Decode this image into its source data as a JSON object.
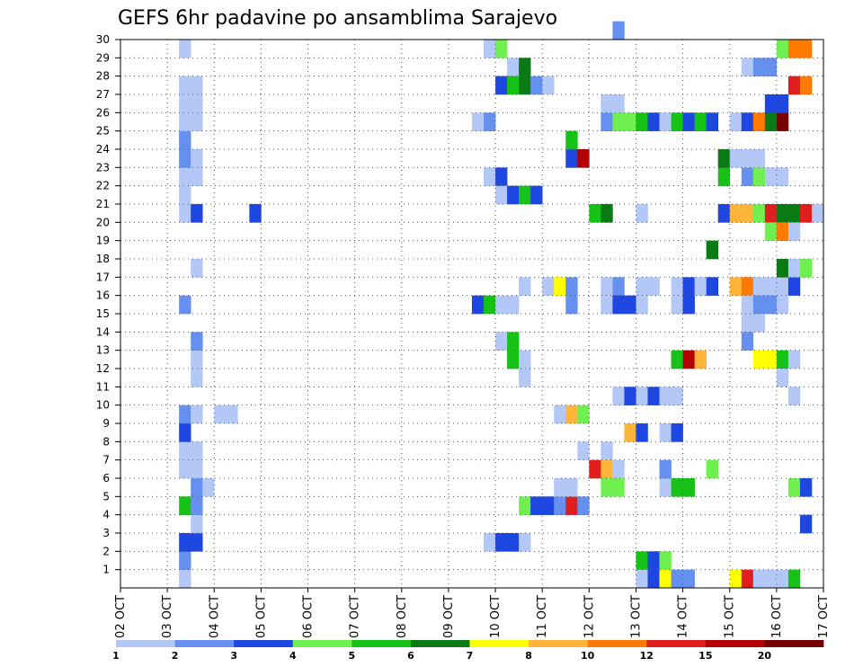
{
  "chart_data": {
    "type": "heatmap",
    "title": "GEFS 6hr padavine po ansamblima Sarajevo",
    "x_ticks": [
      "02 OCT",
      "03 OCT",
      "04 OCT",
      "05 OCT",
      "06 OCT",
      "07 OCT",
      "08 OCT",
      "09 OCT",
      "10 OCT",
      "11 OCT",
      "12 OCT",
      "13 OCT",
      "14 OCT",
      "15 OCT",
      "16 OCT",
      "17 OCT"
    ],
    "x_range_days": [
      2,
      17
    ],
    "steps_per_day": 4,
    "y_ticks": [
      "1",
      "2",
      "3",
      "4",
      "5",
      "6",
      "7",
      "8",
      "9",
      "10",
      "11",
      "12",
      "13",
      "14",
      "15",
      "16",
      "17",
      "18",
      "19",
      "20",
      "21",
      "22",
      "23",
      "24",
      "25",
      "26",
      "27",
      "28",
      "29",
      "30"
    ],
    "y_range": [
      0,
      30
    ],
    "grid": true,
    "legend": {
      "position": "bottom",
      "colors": [
        "#b4c8f8",
        "#6690f0",
        "#1e46e0",
        "#70f050",
        "#16c216",
        "#0a7a14",
        "#ffff00",
        "#ffb43a",
        "#ff7a00",
        "#e01e1e",
        "#b40000",
        "#780000"
      ],
      "labels": [
        "1",
        "2",
        "3",
        "4",
        "5",
        "6",
        "7",
        "8",
        "10",
        "12",
        "15",
        "20"
      ]
    },
    "levels": [
      1,
      2,
      3,
      4,
      5,
      6,
      7,
      8,
      10,
      12,
      15,
      20
    ],
    "cells": [
      [
        3.25,
        0,
        1
      ],
      [
        3.25,
        1,
        2
      ],
      [
        3.25,
        2,
        3
      ],
      [
        3.5,
        2,
        3
      ],
      [
        3.5,
        3,
        1
      ],
      [
        3.25,
        4,
        5
      ],
      [
        3.5,
        4,
        2
      ],
      [
        3.5,
        5,
        2
      ],
      [
        3.75,
        5,
        1
      ],
      [
        3.25,
        6,
        1
      ],
      [
        3.5,
        6,
        1
      ],
      [
        3.25,
        7,
        1
      ],
      [
        3.5,
        7,
        1
      ],
      [
        3.25,
        8,
        3
      ],
      [
        3.25,
        9,
        2
      ],
      [
        3.5,
        9,
        1
      ],
      [
        4.0,
        9,
        1
      ],
      [
        4.25,
        9,
        1
      ],
      [
        3.5,
        11,
        1
      ],
      [
        3.5,
        12,
        1
      ],
      [
        3.5,
        13,
        2
      ],
      [
        3.25,
        15,
        2
      ],
      [
        3.5,
        17,
        1
      ],
      [
        3.25,
        20,
        1
      ],
      [
        3.5,
        20,
        3
      ],
      [
        4.75,
        20,
        3
      ],
      [
        3.25,
        21,
        1
      ],
      [
        3.25,
        22,
        1
      ],
      [
        3.5,
        22,
        1
      ],
      [
        3.25,
        23,
        2
      ],
      [
        3.5,
        23,
        1
      ],
      [
        3.25,
        24,
        2
      ],
      [
        3.25,
        25,
        1
      ],
      [
        3.5,
        25,
        1
      ],
      [
        3.25,
        26,
        1
      ],
      [
        3.5,
        26,
        1
      ],
      [
        3.25,
        27,
        1
      ],
      [
        3.5,
        27,
        1
      ],
      [
        3.25,
        29,
        1
      ],
      [
        9.75,
        2,
        1
      ],
      [
        10.0,
        2,
        3
      ],
      [
        10.25,
        2,
        3
      ],
      [
        10.5,
        2,
        1
      ],
      [
        10.5,
        4,
        4
      ],
      [
        10.75,
        4,
        3
      ],
      [
        11.0,
        4,
        3
      ],
      [
        11.25,
        4,
        2
      ],
      [
        11.5,
        4,
        10
      ],
      [
        11.75,
        4,
        2
      ],
      [
        11.25,
        5,
        1
      ],
      [
        11.5,
        5,
        1
      ],
      [
        10.25,
        12,
        5
      ],
      [
        10.5,
        11,
        1
      ],
      [
        10.5,
        12,
        1
      ],
      [
        10.0,
        13,
        1
      ],
      [
        10.25,
        13,
        5
      ],
      [
        9.5,
        15,
        3
      ],
      [
        9.75,
        15,
        5
      ],
      [
        10.0,
        15,
        1
      ],
      [
        10.25,
        15,
        1
      ],
      [
        11.5,
        15,
        2
      ],
      [
        10.5,
        16,
        1
      ],
      [
        11.0,
        16,
        1
      ],
      [
        11.25,
        16,
        7
      ],
      [
        11.5,
        16,
        2
      ],
      [
        9.75,
        22,
        1
      ],
      [
        10.0,
        22,
        3
      ],
      [
        10.0,
        21,
        1
      ],
      [
        10.25,
        21,
        3
      ],
      [
        10.5,
        21,
        5
      ],
      [
        10.75,
        21,
        3
      ],
      [
        10.25,
        28,
        1
      ],
      [
        10.5,
        28,
        6
      ],
      [
        10.0,
        27,
        3
      ],
      [
        10.25,
        27,
        5
      ],
      [
        10.5,
        27,
        6
      ],
      [
        10.75,
        27,
        2
      ],
      [
        11.0,
        27,
        1
      ],
      [
        9.75,
        29,
        1
      ],
      [
        10.0,
        29,
        4
      ],
      [
        9.5,
        25,
        1
      ],
      [
        9.75,
        25,
        2
      ],
      [
        11.25,
        9,
        1
      ],
      [
        11.5,
        9,
        8
      ],
      [
        11.75,
        9,
        4
      ],
      [
        11.5,
        23,
        3
      ],
      [
        11.75,
        23,
        11
      ],
      [
        11.5,
        24,
        5
      ],
      [
        12.0,
        6,
        10
      ],
      [
        12.25,
        6,
        8
      ],
      [
        12.5,
        6,
        1
      ],
      [
        11.75,
        7,
        1
      ],
      [
        12.25,
        7,
        1
      ],
      [
        12.25,
        5,
        4
      ],
      [
        12.5,
        5,
        4
      ],
      [
        12.5,
        10,
        1
      ],
      [
        12.75,
        10,
        3
      ],
      [
        13.0,
        10,
        1
      ],
      [
        13.25,
        10,
        3
      ],
      [
        13.5,
        10,
        1
      ],
      [
        13.75,
        10,
        1
      ],
      [
        12.75,
        8,
        8
      ],
      [
        13.0,
        8,
        3
      ],
      [
        13.5,
        8,
        1
      ],
      [
        13.75,
        8,
        3
      ],
      [
        13.5,
        5,
        1
      ],
      [
        13.75,
        5,
        5
      ],
      [
        14.0,
        5,
        5
      ],
      [
        13.5,
        6,
        2
      ],
      [
        14.5,
        6,
        4
      ],
      [
        13.75,
        12,
        5
      ],
      [
        14.0,
        12,
        11
      ],
      [
        14.25,
        12,
        8
      ],
      [
        12.25,
        16,
        1
      ],
      [
        12.5,
        16,
        2
      ],
      [
        13.0,
        16,
        1
      ],
      [
        13.25,
        16,
        1
      ],
      [
        13.75,
        16,
        1
      ],
      [
        12.25,
        15,
        1
      ],
      [
        12.5,
        15,
        3
      ],
      [
        12.75,
        15,
        3
      ],
      [
        13.0,
        15,
        1
      ],
      [
        13.75,
        15,
        1
      ],
      [
        14.0,
        15,
        3
      ],
      [
        12.0,
        20,
        5
      ],
      [
        12.25,
        20,
        6
      ],
      [
        13.0,
        20,
        1
      ],
      [
        14.5,
        18,
        6
      ],
      [
        14.75,
        20,
        3
      ],
      [
        15.0,
        20,
        8
      ],
      [
        15.25,
        20,
        8
      ],
      [
        15.5,
        20,
        4
      ],
      [
        15.75,
        20,
        10
      ],
      [
        16.0,
        20,
        6
      ],
      [
        16.25,
        20,
        6
      ],
      [
        16.5,
        20,
        10
      ],
      [
        16.75,
        20,
        1
      ],
      [
        15.75,
        19,
        4
      ],
      [
        16.0,
        19,
        9
      ],
      [
        16.25,
        19,
        1
      ],
      [
        14.75,
        22,
        5
      ],
      [
        15.25,
        22,
        2
      ],
      [
        15.5,
        22,
        4
      ],
      [
        15.75,
        22,
        1
      ],
      [
        16.0,
        22,
        1
      ],
      [
        14.75,
        23,
        6
      ],
      [
        15.0,
        23,
        1
      ],
      [
        15.25,
        23,
        1
      ],
      [
        15.5,
        23,
        1
      ],
      [
        12.25,
        25,
        2
      ],
      [
        12.5,
        25,
        4
      ],
      [
        12.75,
        25,
        4
      ],
      [
        13.0,
        25,
        5
      ],
      [
        13.25,
        25,
        3
      ],
      [
        13.5,
        25,
        1
      ],
      [
        13.75,
        25,
        5
      ],
      [
        14.0,
        25,
        3
      ],
      [
        14.25,
        25,
        5
      ],
      [
        14.5,
        25,
        3
      ],
      [
        15.0,
        25,
        1
      ],
      [
        15.25,
        25,
        3
      ],
      [
        15.5,
        25,
        9
      ],
      [
        15.75,
        25,
        6
      ],
      [
        16.0,
        25,
        12
      ],
      [
        12.25,
        26,
        1
      ],
      [
        12.5,
        26,
        1
      ],
      [
        15.75,
        26,
        3
      ],
      [
        16.0,
        26,
        3
      ],
      [
        12.5,
        30,
        2
      ],
      [
        15.0,
        16,
        8
      ],
      [
        15.25,
        16,
        9
      ],
      [
        15.5,
        16,
        1
      ],
      [
        15.75,
        16,
        1
      ],
      [
        16.0,
        16,
        1
      ],
      [
        16.25,
        16,
        3
      ],
      [
        16.0,
        17,
        6
      ],
      [
        16.25,
        17,
        1
      ],
      [
        16.5,
        17,
        4
      ],
      [
        15.25,
        15,
        1
      ],
      [
        15.5,
        15,
        2
      ],
      [
        15.75,
        15,
        2
      ],
      [
        16.0,
        15,
        1
      ],
      [
        15.25,
        14,
        1
      ],
      [
        15.5,
        14,
        1
      ],
      [
        15.25,
        13,
        2
      ],
      [
        15.5,
        12,
        7
      ],
      [
        15.75,
        12,
        7
      ],
      [
        16.0,
        12,
        5
      ],
      [
        16.25,
        12,
        1
      ],
      [
        16.0,
        11,
        1
      ],
      [
        16.25,
        10,
        1
      ],
      [
        16.25,
        5,
        4
      ],
      [
        16.5,
        5,
        3
      ],
      [
        16.5,
        3,
        3
      ],
      [
        15.0,
        0,
        7
      ],
      [
        15.25,
        0,
        10
      ],
      [
        15.5,
        0,
        1
      ],
      [
        15.75,
        0,
        1
      ],
      [
        16.0,
        0,
        1
      ],
      [
        16.25,
        0,
        5
      ],
      [
        13.0,
        1,
        5
      ],
      [
        13.25,
        1,
        3
      ],
      [
        13.5,
        1,
        4
      ],
      [
        13.0,
        0,
        1
      ],
      [
        13.25,
        0,
        3
      ],
      [
        13.5,
        0,
        7
      ],
      [
        13.75,
        0,
        2
      ],
      [
        14.0,
        0,
        2
      ],
      [
        15.25,
        28,
        1
      ],
      [
        15.5,
        28,
        2
      ],
      [
        15.75,
        28,
        2
      ],
      [
        16.0,
        29,
        4
      ],
      [
        16.25,
        29,
        9
      ],
      [
        16.5,
        29,
        9
      ],
      [
        16.25,
        27,
        10
      ],
      [
        16.5,
        27,
        9
      ],
      [
        14.0,
        16,
        3
      ],
      [
        14.25,
        16,
        1
      ],
      [
        14.5,
        16,
        3
      ]
    ]
  }
}
